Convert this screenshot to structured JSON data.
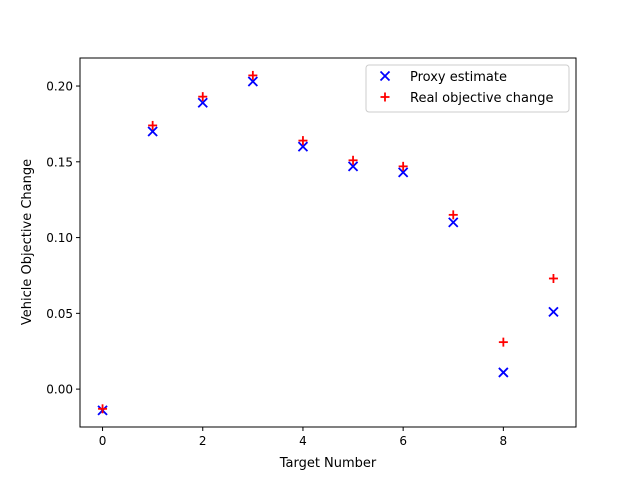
{
  "chart_data": {
    "type": "scatter",
    "title": "",
    "xlabel": "Target Number",
    "ylabel": "Vehicle Objective Change",
    "xlim": [
      -0.45,
      9.45
    ],
    "ylim": [
      -0.025,
      0.2185
    ],
    "xticks": [
      0,
      2,
      4,
      6,
      8
    ],
    "xtick_labels": [
      "0",
      "2",
      "4",
      "6",
      "8"
    ],
    "yticks": [
      0.0,
      0.05,
      0.1,
      0.15,
      0.2
    ],
    "ytick_labels": [
      "0.00",
      "0.05",
      "0.10",
      "0.15",
      "0.20"
    ],
    "grid": false,
    "legend_position": "top-right",
    "x": [
      0,
      1,
      2,
      3,
      4,
      5,
      6,
      7,
      8,
      9
    ],
    "series": [
      {
        "name": "Proxy estimate",
        "marker": "x",
        "color": "#0000ff",
        "values": [
          -0.014,
          0.17,
          0.189,
          0.203,
          0.16,
          0.147,
          0.143,
          0.11,
          0.011,
          0.051
        ]
      },
      {
        "name": "Real objective change",
        "marker": "+",
        "color": "#ff0000",
        "values": [
          -0.013,
          0.174,
          0.193,
          0.207,
          0.164,
          0.151,
          0.147,
          0.115,
          0.031,
          0.073
        ]
      }
    ]
  }
}
